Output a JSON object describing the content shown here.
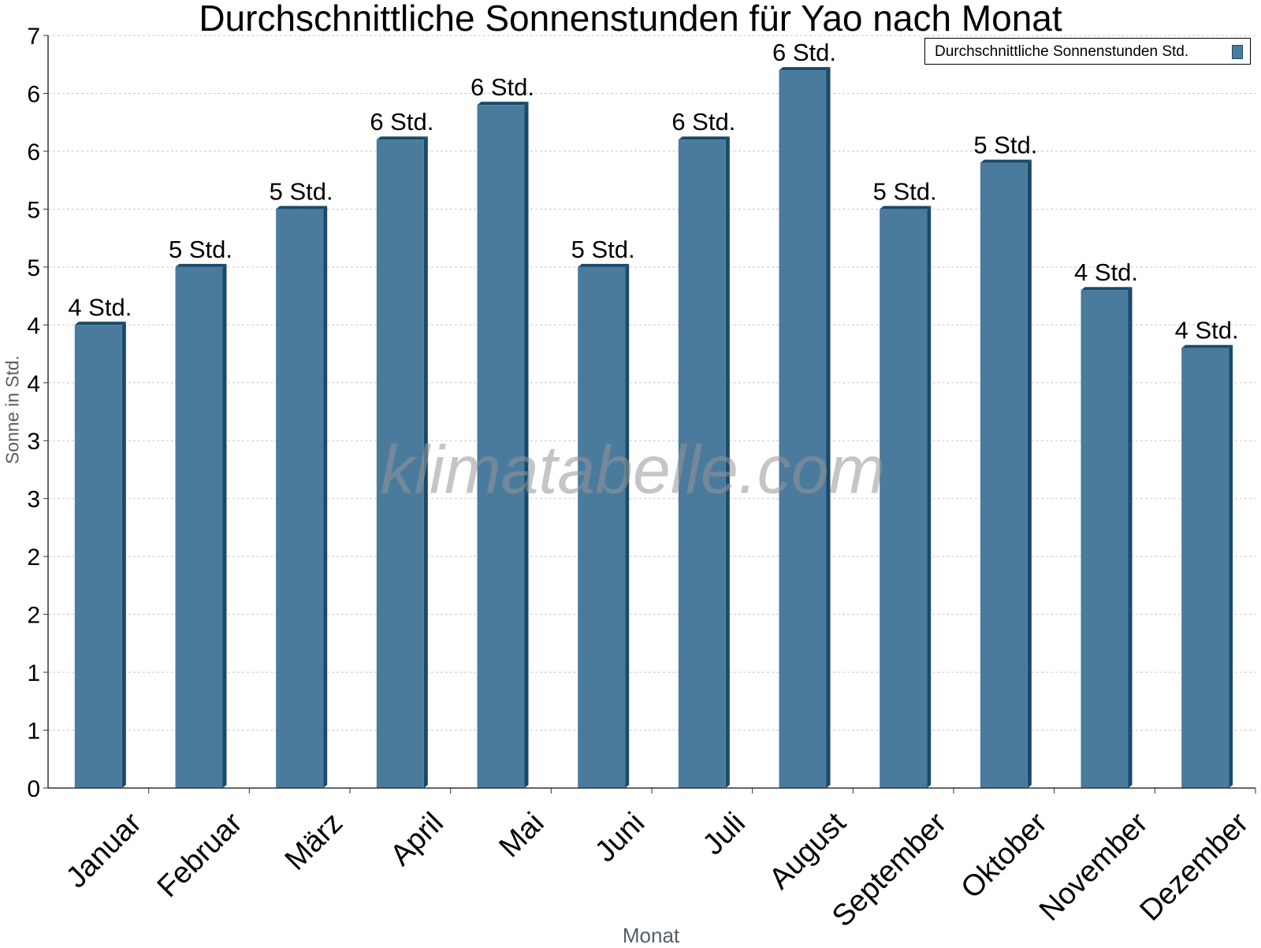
{
  "chart_data": {
    "type": "bar",
    "title": "Durchschnittliche Sonnenstunden für Yao nach Monat",
    "xlabel": "Monat",
    "ylabel": "Sonne in Std.",
    "categories": [
      "Januar",
      "Februar",
      "März",
      "April",
      "Mai",
      "Juni",
      "Juli",
      "August",
      "September",
      "Oktober",
      "November",
      "Dezember"
    ],
    "series": [
      {
        "name": "Durchschnittliche Sonnenstunden Std.",
        "values": [
          4.0,
          4.5,
          5.0,
          5.6,
          5.9,
          4.5,
          5.6,
          6.2,
          5.0,
          5.4,
          4.3,
          3.8
        ],
        "data_labels": [
          "4 Std.",
          "5 Std.",
          "5 Std.",
          "6 Std.",
          "6 Std.",
          "5 Std.",
          "6 Std.",
          "6 Std.",
          "5 Std.",
          "5 Std.",
          "4 Std.",
          "4 Std."
        ]
      }
    ],
    "ylim": [
      0,
      6.5
    ],
    "y_ticks": [
      0,
      0.5,
      1,
      1.5,
      2,
      2.5,
      3,
      3.5,
      4,
      4.5,
      5,
      5.5,
      6,
      6.5
    ],
    "y_tick_labels": [
      "0",
      "1",
      "1",
      "2",
      "2",
      "3",
      "3",
      "4",
      "4",
      "5",
      "5",
      "6",
      "6",
      "7"
    ],
    "grid": true,
    "legend": "top-right",
    "watermark": "klimatabelle.com",
    "colors": {
      "bar": "#4a7b9d",
      "bar_edge": "#1a4a6a",
      "grid": "#c8c8c8",
      "axis_title": "#555e66"
    }
  }
}
